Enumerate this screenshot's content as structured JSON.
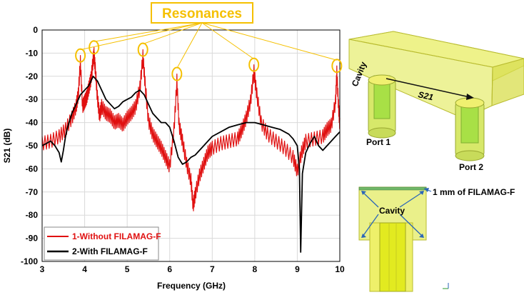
{
  "title_box": "Resonances",
  "colors": {
    "without": "#e01010",
    "with": "#000000",
    "highlight": "#f5c000",
    "cavity_fill": "#e3ea5a",
    "cavity_edge": "#b8b828"
  },
  "chart_data": {
    "type": "line",
    "xlabel": "Frequency (GHz)",
    "ylabel": "S21 (dB)",
    "xlim": [
      3,
      10
    ],
    "ylim": [
      -100,
      0
    ],
    "xticks": [
      "3",
      "4",
      "5",
      "6",
      "7",
      "8",
      "9",
      "10"
    ],
    "yticks": [
      "0",
      "-10",
      "-20",
      "-30",
      "-40",
      "-50",
      "-60",
      "-70",
      "-80",
      "-90",
      "-100"
    ],
    "grid": true,
    "legend_position": "bottom-left",
    "resonances": [
      {
        "x": 3.9,
        "y": -11
      },
      {
        "x": 4.22,
        "y": -7.5
      },
      {
        "x": 5.37,
        "y": -8.5
      },
      {
        "x": 6.17,
        "y": -19
      },
      {
        "x": 7.98,
        "y": -15
      },
      {
        "x": 9.93,
        "y": -15.5
      }
    ],
    "series": [
      {
        "name": "1-Without FILAMAG-F",
        "x": [
          3.0,
          3.2,
          3.4,
          3.55,
          3.7,
          3.8,
          3.85,
          3.9,
          3.95,
          4.0,
          4.05,
          4.1,
          4.15,
          4.2,
          4.22,
          4.25,
          4.3,
          4.35,
          4.4,
          4.5,
          4.6,
          4.7,
          4.8,
          4.9,
          5.0,
          5.1,
          5.2,
          5.3,
          5.37,
          5.42,
          5.5,
          5.6,
          5.7,
          5.8,
          5.9,
          6.0,
          6.1,
          6.17,
          6.22,
          6.3,
          6.4,
          6.5,
          6.55,
          6.6,
          6.7,
          6.8,
          6.9,
          7.0,
          7.2,
          7.4,
          7.6,
          7.7,
          7.8,
          7.9,
          7.98,
          8.05,
          8.15,
          8.3,
          8.5,
          8.7,
          8.9,
          9.0,
          9.1,
          9.2,
          9.4,
          9.6,
          9.7,
          9.8,
          9.9,
          9.93,
          9.97,
          10.0
        ],
        "y": [
          -46,
          -45,
          -43,
          -40,
          -35,
          -30,
          -25,
          -11,
          -30,
          -28,
          -26,
          -22,
          -18,
          -10,
          -7.5,
          -14,
          -26,
          -34,
          -30,
          -33,
          -34,
          -37,
          -36,
          -38,
          -35,
          -33,
          -30,
          -22,
          -8.5,
          -20,
          -36,
          -42,
          -45,
          -48,
          -52,
          -56,
          -40,
          -19,
          -38,
          -45,
          -55,
          -62,
          -73,
          -68,
          -60,
          -55,
          -50,
          -48,
          -46,
          -45,
          -44,
          -40,
          -35,
          -28,
          -15,
          -25,
          -37,
          -42,
          -45,
          -48,
          -52,
          -58,
          -50,
          -45,
          -44,
          -43,
          -40,
          -38,
          -28,
          -15.5,
          -30,
          -38
        ]
      },
      {
        "name": "2-With FILAMAG-F",
        "x": [
          3.0,
          3.1,
          3.2,
          3.3,
          3.4,
          3.45,
          3.5,
          3.55,
          3.6,
          3.7,
          3.8,
          3.9,
          4.0,
          4.1,
          4.2,
          4.3,
          4.4,
          4.5,
          4.6,
          4.7,
          4.8,
          4.9,
          5.0,
          5.1,
          5.2,
          5.3,
          5.4,
          5.5,
          5.6,
          5.7,
          5.8,
          5.9,
          6.0,
          6.1,
          6.2,
          6.3,
          6.4,
          6.5,
          6.6,
          6.7,
          6.8,
          6.9,
          7.0,
          7.2,
          7.4,
          7.6,
          7.8,
          8.0,
          8.2,
          8.4,
          8.6,
          8.8,
          8.9,
          9.0,
          9.05,
          9.08,
          9.12,
          9.2,
          9.3,
          9.4,
          9.5,
          9.6,
          9.7,
          9.8,
          9.9,
          10.0
        ],
        "y": [
          -50,
          -49,
          -48,
          -50,
          -53,
          -57,
          -52,
          -46,
          -42,
          -36,
          -32,
          -28,
          -26,
          -24,
          -20,
          -22,
          -26,
          -30,
          -32,
          -34,
          -33,
          -31,
          -30,
          -29,
          -27,
          -26,
          -28,
          -32,
          -36,
          -38,
          -40,
          -40,
          -42,
          -48,
          -55,
          -58,
          -57,
          -55,
          -54,
          -52,
          -50,
          -48,
          -46,
          -44,
          -42,
          -41,
          -40,
          -40,
          -41,
          -42,
          -43,
          -45,
          -47,
          -50,
          -60,
          -96,
          -62,
          -53,
          -49,
          -46,
          -50,
          -52,
          -50,
          -48,
          -46,
          -44
        ]
      }
    ]
  },
  "diagram": {
    "cavity_label": "Cavity",
    "arrow_label": "S21",
    "port1_label": "Port 1",
    "port2_label": "Port 2",
    "layer_label": "1 mm of FILAMAG-F",
    "section_cavity_label": "Cavity"
  }
}
